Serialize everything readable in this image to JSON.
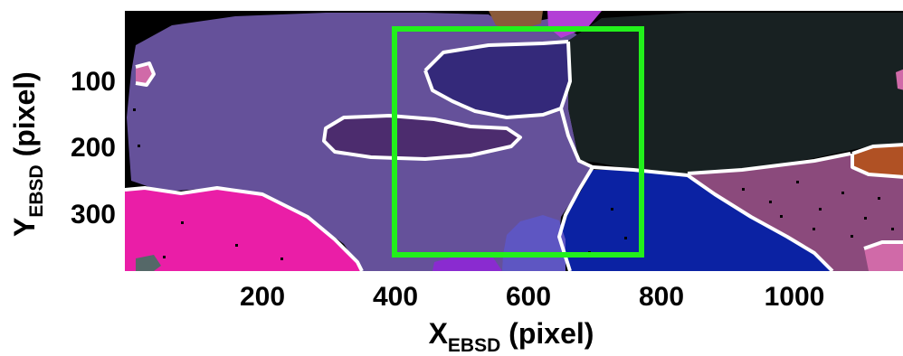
{
  "figure": {
    "x_axis": {
      "title_main": "X",
      "title_sub": "EBSD",
      "title_unit": " (pixel)",
      "tick_labels": [
        "200",
        "400",
        "600",
        "800",
        "1000"
      ]
    },
    "y_axis": {
      "title_main": "Y",
      "title_sub": "EBSD",
      "title_unit": " (pixel)",
      "tick_labels": [
        "100",
        "200",
        "300"
      ]
    },
    "grain_colors": {
      "background": "#000000",
      "matrix": "#65519a",
      "upper_grain": "#34297a",
      "left_grain": "#4c2c6e",
      "dark_grain": "#182122",
      "blue_grain": "#0b22a3",
      "magenta_grain": "#ea1ea7",
      "mauve_grain": "#8b4a7c",
      "orange_grain": "#b05124",
      "boundary": "#ffffff"
    },
    "roi_color": "#22f01b"
  }
}
